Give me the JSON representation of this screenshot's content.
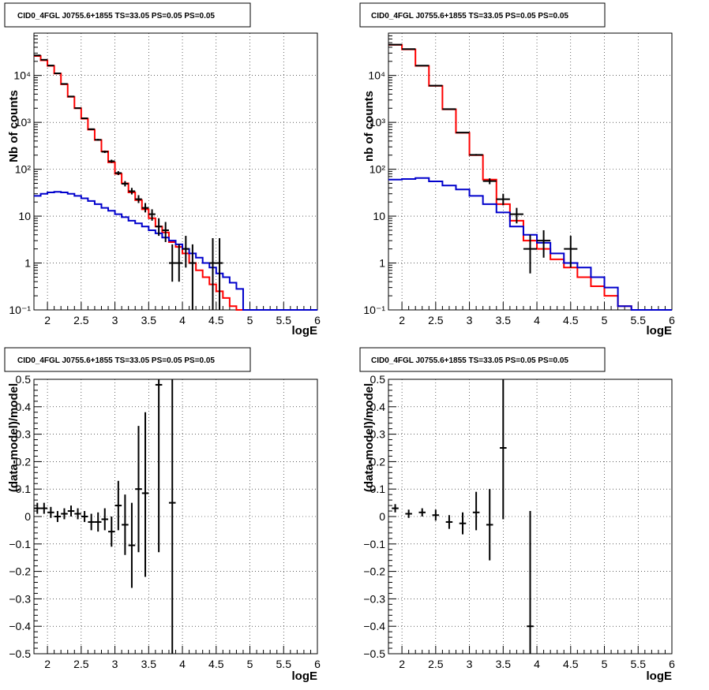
{
  "chart_data": [
    {
      "type": "line",
      "title": "CID0_4FGL J0755.6+1855 TS=33.05 PS=0.05 PS=0.05",
      "xlabel": "logE",
      "ylabel": "Nb of counts",
      "xlim": [
        1.8,
        6.0
      ],
      "ylim": [
        0.1,
        80000
      ],
      "yscale": "log",
      "grid": true,
      "x_ticks": [
        "2",
        "2.5",
        "3",
        "3.5",
        "4",
        "4.5",
        "5",
        "5.5",
        "6"
      ],
      "y_ticks": [
        "10^-1",
        "1",
        "10",
        "10^2",
        "10^3",
        "10^4"
      ],
      "bin_edges": [
        1.8,
        1.9,
        2.0,
        2.1,
        2.2,
        2.3,
        2.4,
        2.5,
        2.6,
        2.7,
        2.8,
        2.9,
        3.0,
        3.1,
        3.2,
        3.3,
        3.4,
        3.5,
        3.6,
        3.7,
        3.8,
        3.9,
        4.0,
        4.1,
        4.2,
        4.3,
        4.4,
        4.5,
        4.6,
        4.7,
        4.8,
        4.9,
        5.0,
        5.1,
        5.2,
        5.3,
        5.4,
        5.5,
        5.6,
        5.7,
        5.8,
        5.9,
        6.0
      ],
      "series": [
        {
          "color": "#ff0000",
          "kind": "step",
          "values": [
            26000,
            21000,
            16000,
            11000,
            6500,
            3500,
            2000,
            1200,
            700,
            420,
            240,
            140,
            80,
            50,
            32,
            22,
            14,
            9,
            6,
            4.5,
            2.8,
            2.2,
            1.6,
            1.0,
            0.7,
            0.5,
            0.35,
            0.25,
            0.18,
            0.12,
            0.09,
            0.1,
            0.1,
            0.1,
            0.1,
            0.1,
            0.1,
            0.1,
            0.1,
            0.1,
            0.1,
            0.1
          ]
        },
        {
          "color": "#0000cc",
          "kind": "step",
          "values": [
            27,
            30,
            32,
            33,
            32,
            30,
            27,
            24,
            21,
            18,
            15,
            13,
            11,
            9.5,
            8,
            7,
            6,
            5,
            4.3,
            3.5,
            3,
            2.5,
            2,
            1.6,
            1.3,
            1,
            0.8,
            0.6,
            0.5,
            0.38,
            0.28,
            0.1,
            0.1,
            0.1,
            0.1,
            0.1,
            0.1,
            0.1,
            0.1,
            0.1,
            0.1,
            0.1
          ]
        },
        {
          "color": "#000000",
          "kind": "points",
          "x": [
            1.85,
            1.95,
            2.05,
            2.15,
            2.25,
            2.35,
            2.45,
            2.55,
            2.65,
            2.75,
            2.85,
            2.95,
            3.05,
            3.15,
            3.25,
            3.35,
            3.45,
            3.55,
            3.65,
            3.75,
            3.85,
            3.95,
            4.05,
            4.15,
            4.45,
            4.55
          ],
          "y": [
            26800,
            21600,
            16300,
            11100,
            6600,
            3560,
            2010,
            1220,
            715,
            425,
            236,
            148,
            83,
            49,
            34,
            23,
            15,
            11,
            6,
            5,
            1,
            1,
            2,
            1,
            1,
            1
          ],
          "ylow": [
            26600,
            21400,
            16100,
            10900,
            6500,
            3500,
            1970,
            1190,
            690,
            405,
            222,
            137,
            75,
            43,
            29,
            19,
            12,
            8,
            3.8,
            2.8,
            0.4,
            0.4,
            0.8,
            0.1,
            0.1,
            0.1
          ],
          "yhigh": [
            27000,
            21800,
            16500,
            11300,
            6700,
            3620,
            2050,
            1250,
            740,
            445,
            250,
            160,
            91,
            56,
            40,
            28,
            19,
            14,
            9,
            7.5,
            2.5,
            2.5,
            3.8,
            2.5,
            3.4,
            3.4
          ]
        }
      ]
    },
    {
      "type": "line",
      "title": "CID0_4FGL J0755.6+1855 TS=33.05 PS=0.05 PS=0.05",
      "xlabel": "logE",
      "ylabel": "nb of counts",
      "xlim": [
        1.8,
        6.0
      ],
      "ylim": [
        0.1,
        80000
      ],
      "yscale": "log",
      "grid": true,
      "x_ticks": [
        "2",
        "2.5",
        "3",
        "3.5",
        "4",
        "4.5",
        "5",
        "5.5",
        "6"
      ],
      "y_ticks": [
        "10^-1",
        "1",
        "10",
        "10^2",
        "10^3",
        "10^4"
      ],
      "bin_edges": [
        1.8,
        2.0,
        2.2,
        2.4,
        2.6,
        2.8,
        3.0,
        3.2,
        3.4,
        3.6,
        3.8,
        4.0,
        4.2,
        4.4,
        4.6,
        4.8,
        5.0,
        5.2,
        5.4,
        5.6,
        5.8,
        6.0
      ],
      "series": [
        {
          "color": "#ff0000",
          "kind": "step",
          "values": [
            45000,
            36000,
            16000,
            6000,
            1900,
            600,
            200,
            60,
            18,
            8,
            3,
            2,
            1.2,
            0.8,
            0.5,
            0.32,
            0.2,
            0.12,
            0.1,
            0.1,
            0.1
          ]
        },
        {
          "color": "#0000cc",
          "kind": "step",
          "values": [
            60,
            62,
            65,
            55,
            45,
            37,
            27,
            18,
            12,
            6,
            4,
            2.7,
            1.6,
            1.0,
            0.8,
            0.5,
            0.3,
            0.12,
            0.1,
            0.1,
            0.1
          ]
        },
        {
          "color": "#000000",
          "kind": "points",
          "x": [
            1.9,
            2.1,
            2.3,
            2.5,
            2.7,
            2.9,
            3.1,
            3.3,
            3.5,
            3.7,
            3.9,
            4.1,
            4.5
          ],
          "y": [
            45500,
            36500,
            16200,
            6050,
            1920,
            605,
            203,
            56,
            23,
            11,
            2,
            3,
            2
          ],
          "ylow": [
            45200,
            36200,
            16000,
            5950,
            1880,
            590,
            195,
            48,
            17,
            7,
            0.6,
            1.3,
            0.8
          ],
          "yhigh": [
            45800,
            36800,
            16400,
            6150,
            1960,
            620,
            211,
            64,
            30,
            15,
            4,
            5,
            3.8
          ]
        }
      ]
    },
    {
      "type": "scatter",
      "title": "CID0_4FGL J0755.6+1855 TS=33.05 PS=0.05 PS=0.05",
      "xlabel": "logE",
      "ylabel": "(data-model)/model",
      "xlim": [
        1.8,
        6.0
      ],
      "ylim": [
        -0.5,
        0.5
      ],
      "grid": true,
      "x_ticks": [
        "2",
        "2.5",
        "3",
        "3.5",
        "4",
        "4.5",
        "5",
        "5.5",
        "6"
      ],
      "y_ticks": [
        "-0.5",
        "-0.4",
        "-0.3",
        "-0.2",
        "-0.1",
        "0",
        "0.1",
        "0.2",
        "0.3",
        "0.4",
        "0.5"
      ],
      "points": {
        "x": [
          1.85,
          1.95,
          2.05,
          2.15,
          2.25,
          2.35,
          2.45,
          2.55,
          2.65,
          2.75,
          2.85,
          2.95,
          3.05,
          3.15,
          3.25,
          3.35,
          3.45,
          3.65,
          3.85
        ],
        "y": [
          0.03,
          0.03,
          0.015,
          0.0,
          0.01,
          0.02,
          0.01,
          0.0,
          -0.02,
          -0.02,
          -0.01,
          -0.055,
          0.04,
          -0.03,
          -0.105,
          0.1,
          0.085,
          0.48,
          0.05
        ],
        "ylow": [
          0.01,
          0.01,
          -0.005,
          -0.02,
          -0.01,
          0.0,
          -0.01,
          -0.02,
          -0.05,
          -0.055,
          -0.05,
          -0.11,
          -0.05,
          -0.14,
          -0.26,
          -0.13,
          -0.22,
          -0.13,
          -0.5
        ],
        "yhigh": [
          0.05,
          0.05,
          0.035,
          0.02,
          0.03,
          0.04,
          0.03,
          0.02,
          0.01,
          0.015,
          0.03,
          0.0,
          0.13,
          0.08,
          0.05,
          0.33,
          0.38,
          0.5,
          0.5
        ]
      }
    },
    {
      "type": "scatter",
      "title": "CID0_4FGL J0755.6+1855 TS=33.05 PS=0.05 PS=0.05",
      "xlabel": "logE",
      "ylabel": "(data-model)/model",
      "xlim": [
        1.8,
        6.0
      ],
      "ylim": [
        -0.5,
        0.5
      ],
      "grid": true,
      "x_ticks": [
        "2",
        "2.5",
        "3",
        "3.5",
        "4",
        "4.5",
        "5",
        "5.5",
        "6"
      ],
      "y_ticks": [
        "-0.5",
        "-0.4",
        "-0.3",
        "-0.2",
        "-0.1",
        "0",
        "0.1",
        "0.2",
        "0.3",
        "0.4",
        "0.5"
      ],
      "points": {
        "x": [
          1.9,
          2.1,
          2.3,
          2.5,
          2.7,
          2.9,
          3.1,
          3.3,
          3.5,
          3.9
        ],
        "y": [
          0.03,
          0.01,
          0.015,
          0.005,
          -0.02,
          -0.025,
          0.015,
          -0.03,
          0.25,
          -0.4
        ],
        "ylow": [
          0.015,
          -0.005,
          0.0,
          -0.015,
          -0.045,
          -0.065,
          -0.05,
          -0.16,
          -0.01,
          -0.5
        ],
        "yhigh": [
          0.045,
          0.025,
          0.03,
          0.025,
          0.005,
          0.015,
          0.09,
          0.1,
          0.5,
          0.02
        ]
      }
    }
  ]
}
